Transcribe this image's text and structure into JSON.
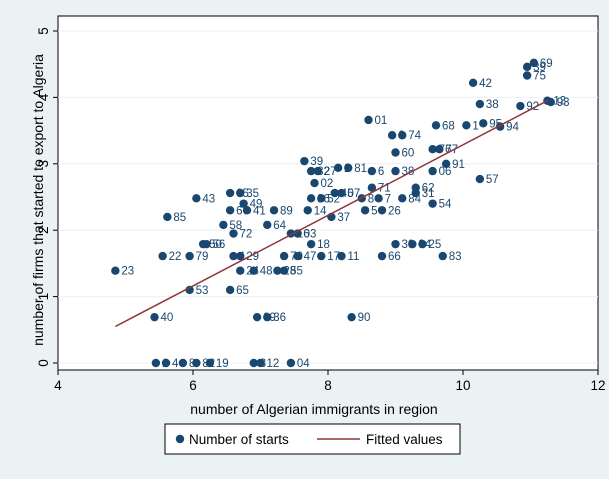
{
  "colors": {
    "background": "#eaf2f3",
    "plot_background": "#ffffff",
    "marker": "#1a476f",
    "label": "#1a476f",
    "fit_line": "#90353b",
    "axis": "#000000",
    "grid": "#eaf2f3"
  },
  "chart_data": {
    "type": "scatter",
    "xlabel": "number of Algerian immigrants in region",
    "ylabel": "number of firms that started to export to Algeria",
    "xlim": [
      4,
      12
    ],
    "ylim": [
      0,
      5
    ],
    "xticks": [
      4,
      6,
      8,
      10,
      12
    ],
    "yticks": [
      0,
      1,
      2,
      3,
      4,
      5
    ],
    "xtick_labels": [
      "4",
      "6",
      "8",
      "10",
      "12"
    ],
    "ytick_labels": [
      "0",
      "1",
      "2",
      "3",
      "4",
      "5"
    ],
    "grid": "horizontal",
    "legend_position": "bottom",
    "legend": [
      "Number of starts",
      "Fitted values"
    ],
    "fitted_line": {
      "x": [
        4.85,
        11.25
      ],
      "y": [
        0.55,
        3.95
      ]
    },
    "series": [
      {
        "name": "Number of starts",
        "points": [
          {
            "x": 4.85,
            "y": 1.39,
            "label": "23"
          },
          {
            "x": 5.43,
            "y": 0.69,
            "label": "40"
          },
          {
            "x": 5.45,
            "y": 0,
            "label": "1"
          },
          {
            "x": 5.6,
            "y": 0,
            "label": "4"
          },
          {
            "x": 5.85,
            "y": 0,
            "label": "8"
          },
          {
            "x": 6.05,
            "y": 0,
            "label": "82"
          },
          {
            "x": 6.25,
            "y": 0,
            "label": "19"
          },
          {
            "x": 6.9,
            "y": 0,
            "label": "3"
          },
          {
            "x": 7.0,
            "y": 0,
            "label": "12"
          },
          {
            "x": 7.45,
            "y": 0,
            "label": "04"
          },
          {
            "x": 5.95,
            "y": 1.1,
            "label": "53"
          },
          {
            "x": 6.55,
            "y": 1.1,
            "label": "65"
          },
          {
            "x": 5.55,
            "y": 1.61,
            "label": "22"
          },
          {
            "x": 5.95,
            "y": 1.61,
            "label": "79"
          },
          {
            "x": 5.62,
            "y": 2.2,
            "label": "85"
          },
          {
            "x": 6.05,
            "y": 2.48,
            "label": "43"
          },
          {
            "x": 6.15,
            "y": 1.79,
            "label": "50"
          },
          {
            "x": 6.2,
            "y": 1.79,
            "label": "56"
          },
          {
            "x": 6.45,
            "y": 2.08,
            "label": "58"
          },
          {
            "x": 6.55,
            "y": 2.3,
            "label": "67"
          },
          {
            "x": 6.55,
            "y": 2.56,
            "label": "65"
          },
          {
            "x": 6.7,
            "y": 2.56,
            "label": "35"
          },
          {
            "x": 6.75,
            "y": 2.4,
            "label": "49"
          },
          {
            "x": 6.8,
            "y": 2.3,
            "label": "41"
          },
          {
            "x": 6.6,
            "y": 1.95,
            "label": "72"
          },
          {
            "x": 6.6,
            "y": 1.61,
            "label": "1"
          },
          {
            "x": 6.7,
            "y": 1.61,
            "label": "29"
          },
          {
            "x": 6.7,
            "y": 1.39,
            "label": "24"
          },
          {
            "x": 6.9,
            "y": 1.39,
            "label": "48"
          },
          {
            "x": 7.1,
            "y": 2.08,
            "label": "64"
          },
          {
            "x": 7.2,
            "y": 2.3,
            "label": "89"
          },
          {
            "x": 7.25,
            "y": 1.39,
            "label": "28"
          },
          {
            "x": 7.35,
            "y": 1.39,
            "label": "55"
          },
          {
            "x": 7.35,
            "y": 1.61,
            "label": "70"
          },
          {
            "x": 7.45,
            "y": 1.95,
            "label": "16"
          },
          {
            "x": 7.55,
            "y": 1.95,
            "label": "03"
          },
          {
            "x": 7.55,
            "y": 1.61,
            "label": "47"
          },
          {
            "x": 6.95,
            "y": 0.69,
            "label": "09"
          },
          {
            "x": 7.1,
            "y": 0.69,
            "label": "36"
          },
          {
            "x": 7.65,
            "y": 3.04,
            "label": "39"
          },
          {
            "x": 7.75,
            "y": 2.89,
            "label": "32"
          },
          {
            "x": 7.85,
            "y": 2.89,
            "label": "27"
          },
          {
            "x": 7.8,
            "y": 2.71,
            "label": "02"
          },
          {
            "x": 7.75,
            "y": 2.48,
            "label": "86"
          },
          {
            "x": 7.9,
            "y": 2.48,
            "label": "52"
          },
          {
            "x": 7.7,
            "y": 2.3,
            "label": "14"
          },
          {
            "x": 7.75,
            "y": 1.79,
            "label": "18"
          },
          {
            "x": 8.05,
            "y": 2.2,
            "label": "37"
          },
          {
            "x": 7.9,
            "y": 1.61,
            "label": "17"
          },
          {
            "x": 8.1,
            "y": 2.56,
            "label": "45"
          },
          {
            "x": 8.2,
            "y": 2.56,
            "label": "07"
          },
          {
            "x": 8.15,
            "y": 2.94,
            "label": "2"
          },
          {
            "x": 8.3,
            "y": 2.94,
            "label": "81"
          },
          {
            "x": 8.2,
            "y": 1.61,
            "label": "11"
          },
          {
            "x": 8.35,
            "y": 0.69,
            "label": "90"
          },
          {
            "x": 8.5,
            "y": 2.48,
            "label": "8"
          },
          {
            "x": 8.55,
            "y": 2.3,
            "label": "5"
          },
          {
            "x": 8.6,
            "y": 3.66,
            "label": "01"
          },
          {
            "x": 8.65,
            "y": 2.64,
            "label": "71"
          },
          {
            "x": 8.65,
            "y": 2.89,
            "label": "6"
          },
          {
            "x": 8.75,
            "y": 2.48,
            "label": "7"
          },
          {
            "x": 8.8,
            "y": 2.3,
            "label": "26"
          },
          {
            "x": 8.8,
            "y": 1.61,
            "label": "66"
          },
          {
            "x": 8.95,
            "y": 3.43,
            "label": "6"
          },
          {
            "x": 9.0,
            "y": 3.17,
            "label": "60"
          },
          {
            "x": 9.0,
            "y": 2.89,
            "label": "38"
          },
          {
            "x": 9.1,
            "y": 3.43,
            "label": "74"
          },
          {
            "x": 9.1,
            "y": 2.48,
            "label": "84"
          },
          {
            "x": 9.0,
            "y": 1.79,
            "label": "30"
          },
          {
            "x": 9.25,
            "y": 1.79,
            "label": "34"
          },
          {
            "x": 9.3,
            "y": 2.64,
            "label": "62"
          },
          {
            "x": 9.3,
            "y": 2.56,
            "label": "31"
          },
          {
            "x": 9.4,
            "y": 1.79,
            "label": "25"
          },
          {
            "x": 9.55,
            "y": 3.22,
            "label": "76"
          },
          {
            "x": 9.6,
            "y": 3.58,
            "label": "68"
          },
          {
            "x": 9.65,
            "y": 3.22,
            "label": "77"
          },
          {
            "x": 9.55,
            "y": 2.89,
            "label": "06"
          },
          {
            "x": 9.55,
            "y": 2.4,
            "label": "54"
          },
          {
            "x": 9.7,
            "y": 1.61,
            "label": "83"
          },
          {
            "x": 9.75,
            "y": 3.0,
            "label": "91"
          },
          {
            "x": 10.05,
            "y": 3.58,
            "label": "1"
          },
          {
            "x": 10.15,
            "y": 4.22,
            "label": "42"
          },
          {
            "x": 10.25,
            "y": 3.9,
            "label": "38"
          },
          {
            "x": 10.3,
            "y": 3.61,
            "label": "95"
          },
          {
            "x": 10.25,
            "y": 2.77,
            "label": "57"
          },
          {
            "x": 10.55,
            "y": 3.56,
            "label": "94"
          },
          {
            "x": 10.85,
            "y": 3.87,
            "label": "92"
          },
          {
            "x": 10.95,
            "y": 4.46,
            "label": "39"
          },
          {
            "x": 10.95,
            "y": 4.33,
            "label": "75"
          },
          {
            "x": 11.05,
            "y": 4.52,
            "label": "69"
          },
          {
            "x": 11.25,
            "y": 3.95,
            "label": "13"
          },
          {
            "x": 11.3,
            "y": 3.93,
            "label": "93"
          }
        ]
      }
    ]
  }
}
